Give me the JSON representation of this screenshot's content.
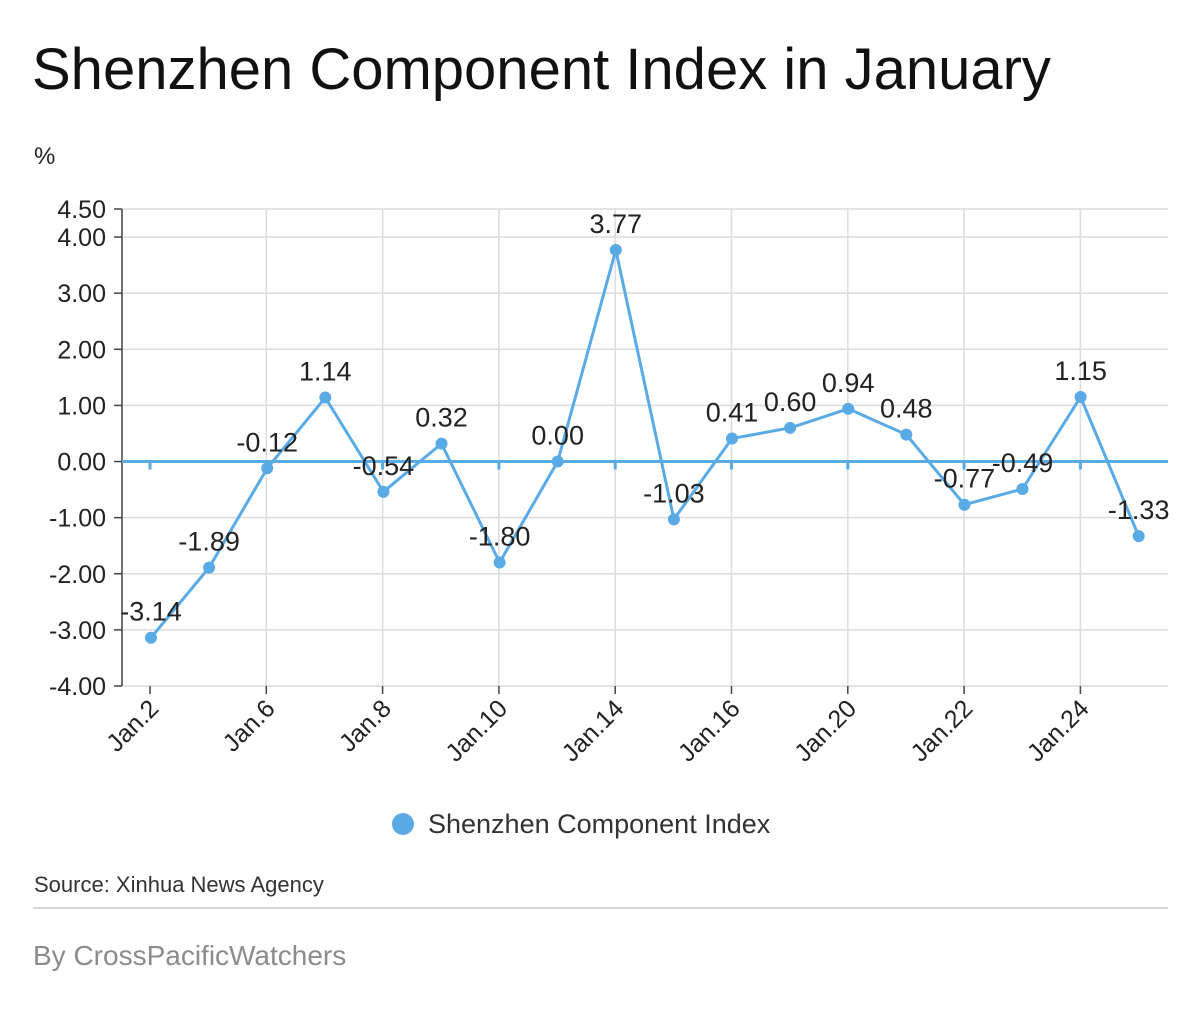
{
  "page": {
    "title": "Shenzhen Component Index in January",
    "unit": "%",
    "source": "Source: Xinhua News Agency",
    "byline": "By CrossPacificWatchers"
  },
  "colors": {
    "series": "#5aaae6",
    "grid": "#dcdcdc",
    "axis": "#444444",
    "text": "#222222"
  },
  "chart_data": {
    "type": "line",
    "title": "Shenzhen Component Index in January",
    "ylabel": "%",
    "xlabel": "",
    "ylim": [
      -4.0,
      4.5
    ],
    "yticks": [
      -4.0,
      -3.0,
      -2.0,
      -1.0,
      0.0,
      1.0,
      2.0,
      3.0,
      4.0,
      4.5
    ],
    "ytick_labels": [
      "-4.00",
      "-3.00",
      "-2.00",
      "-1.00",
      "0.00",
      "1.00",
      "2.00",
      "3.00",
      "4.00",
      "4.50"
    ],
    "x_tick_labels": [
      "Jan.2",
      "Jan.6",
      "Jan.8",
      "Jan.10",
      "Jan.14",
      "Jan.16",
      "Jan.20",
      "Jan.22",
      "Jan.24"
    ],
    "grid": true,
    "legend_position": "bottom",
    "series": [
      {
        "name": "Shenzhen Component Index",
        "values": [
          -3.14,
          -1.89,
          -0.12,
          1.14,
          -0.54,
          0.32,
          -1.8,
          0.0,
          3.77,
          -1.03,
          0.41,
          0.6,
          0.94,
          0.48,
          -0.77,
          -0.49,
          1.15,
          -1.33
        ],
        "labels": [
          "-3.14",
          "-1.89",
          "-0.12",
          "1.14",
          "-0.54",
          "0.32",
          "-1.80",
          "0.00",
          "3.77",
          "-1.03",
          "0.41",
          "0.60",
          "0.94",
          "0.48",
          "-0.77",
          "-0.49",
          "1.15",
          "-1.33"
        ]
      }
    ]
  }
}
